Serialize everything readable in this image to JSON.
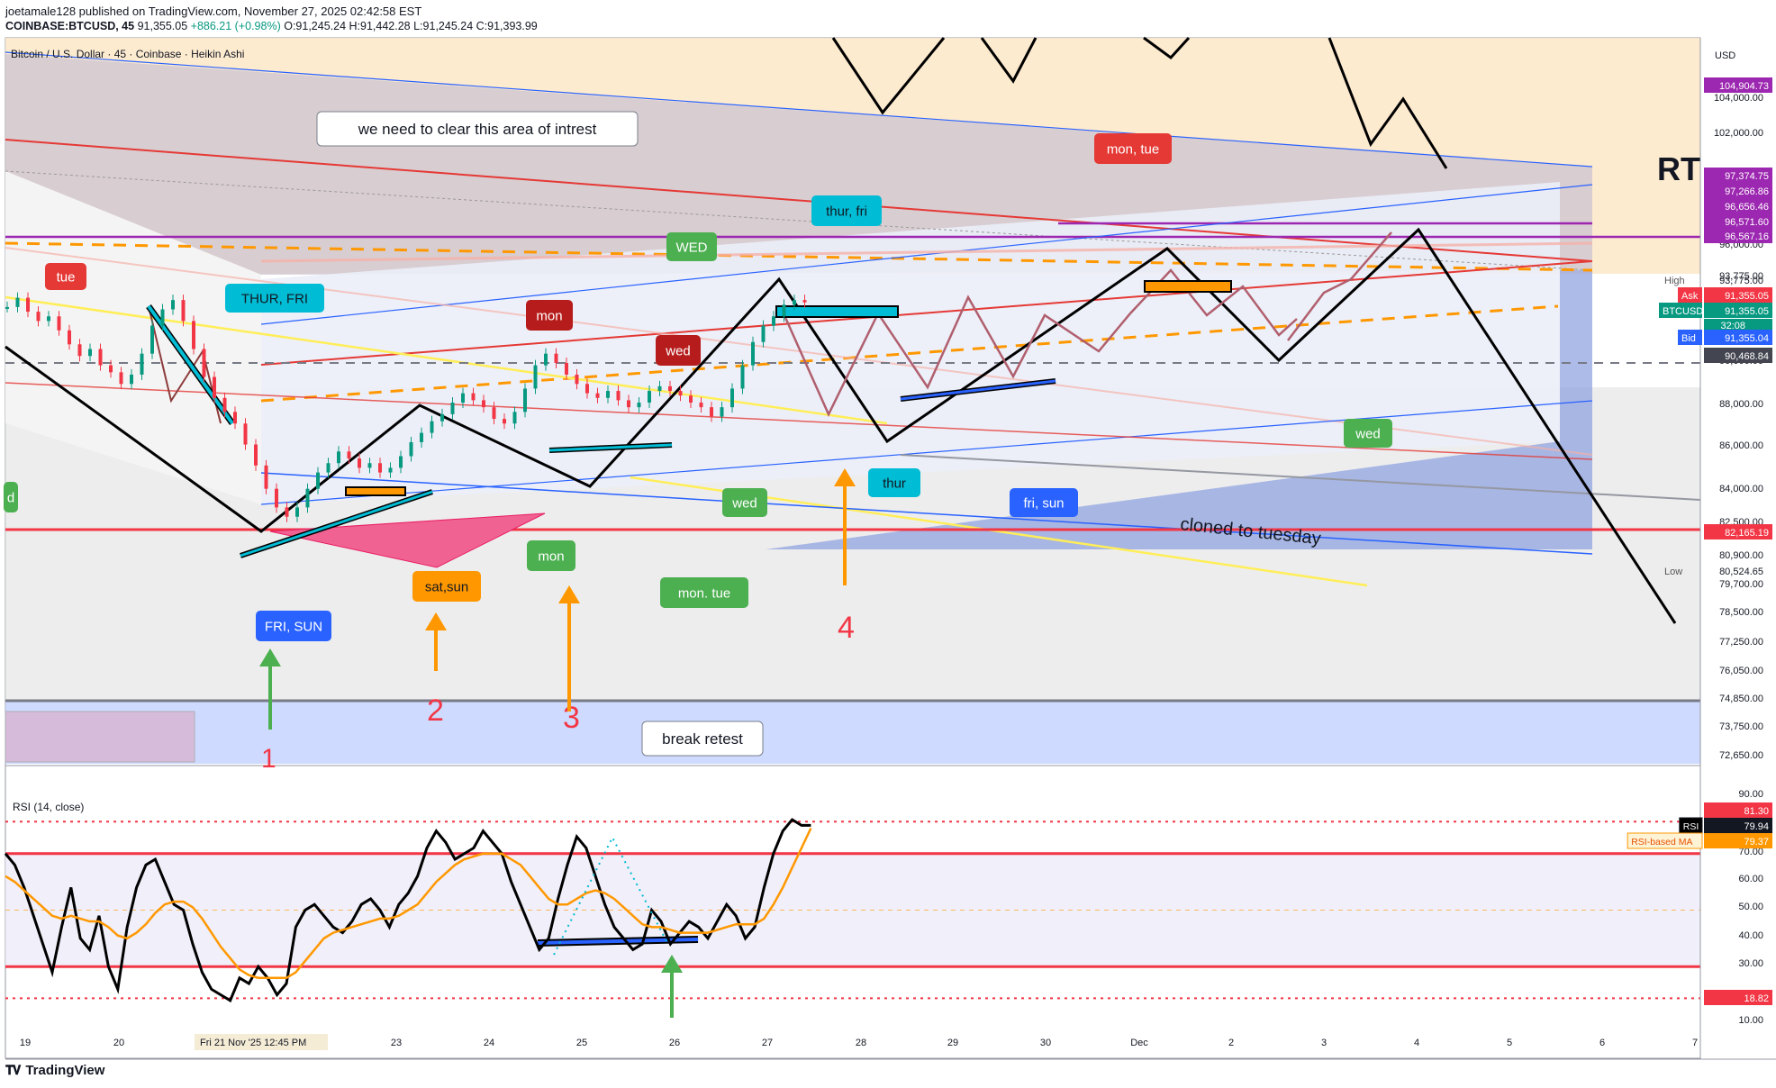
{
  "header": {
    "publisher_line": "joetamale128 published on TradingView.com, November 27, 2025 02:42:58 EST",
    "symbol": "COINBASE:BTCUSD, 45",
    "last": "91,355.05",
    "change": "+886.21 (+0.98%)",
    "o": "O:91,245.24",
    "h": "H:91,442.28",
    "l": "L:91,245.24",
    "c": "C:91,393.99"
  },
  "footer": {
    "brand": "TradingView",
    "logo": "tradingview-logo"
  },
  "colors": {
    "up": "#089981",
    "down": "#f23645",
    "orange": "#ff9800",
    "blue": "#2962ff",
    "cyan": "#00bcd4",
    "green": "#4caf50",
    "red_label": "#e53935",
    "maroon": "#b71c1c",
    "purple": "#9c27b0",
    "axis_text": "#131722"
  },
  "chart_data": [
    {
      "type": "candlestick",
      "title": "Bitcoin / U.S. Dollar · 45 · Coinbase · Heikin Ashi",
      "currency": "USD",
      "scale": "linear",
      "ylim": [
        72000,
        106000
      ],
      "x_ticks": [
        "19",
        "20",
        "21",
        "23",
        "24",
        "25",
        "26",
        "27",
        "28",
        "29",
        "30",
        "Dec",
        "2",
        "3",
        "4",
        "5",
        "6",
        "7"
      ],
      "y_ticks": [
        "104,000.00",
        "102,000.00",
        "96,000.00",
        "93,775.00",
        "90,000.00",
        "88,000.00",
        "86,000.00",
        "84,000.00",
        "82,500.00",
        "80,900.00",
        "79,700.00",
        "78,500.00",
        "77,250.00",
        "76,050.00",
        "74,850.00",
        "73,750.00",
        "72,650.00"
      ],
      "crosshair_x_label": "Fri 21 Nov '25   12:45 PM",
      "price_labels": [
        {
          "text": "104,904.73",
          "value": 104904.73,
          "color": "#9c27b0"
        },
        {
          "text": "97,374.75",
          "value": 97374.75,
          "color": "#9c27b0"
        },
        {
          "text": "97,266.86",
          "value": 97266.86,
          "color": "#9c27b0"
        },
        {
          "text": "96,656.46",
          "value": 96656.46,
          "color": "#9c27b0"
        },
        {
          "text": "96,571.60",
          "value": 96571.6,
          "color": "#9c27b0"
        },
        {
          "text": "96,567.16",
          "value": 96567.16,
          "color": "#9c27b0"
        },
        {
          "text": "91,355.05",
          "value": 91355.05,
          "color": "#f23645",
          "tag": "Ask"
        },
        {
          "text": "91,355.05",
          "value": 91355.05,
          "color": "#089981",
          "tag": "BTCUSD",
          "extra": "32:08"
        },
        {
          "text": "91,355.04",
          "value": 91355.04,
          "color": "#2962ff",
          "tag": "Bid"
        },
        {
          "text": "90,468.84",
          "value": 90468.84,
          "color": "#434651"
        },
        {
          "text": "82,165.19",
          "value": 82165.19,
          "color": "#f23645"
        }
      ],
      "plain_labels": [
        {
          "tag": "High",
          "text": "93,775.00",
          "value": 93775
        },
        {
          "tag": "Low",
          "text": "80,524.65",
          "value": 80524.65
        }
      ],
      "candles": [
        [
          0,
          91200
        ],
        [
          2,
          91600
        ],
        [
          4,
          91000
        ],
        [
          6,
          90600
        ],
        [
          8,
          90800
        ],
        [
          10,
          90200
        ],
        [
          12,
          89600
        ],
        [
          14,
          89100
        ],
        [
          16,
          89400
        ],
        [
          18,
          88700
        ],
        [
          20,
          88400
        ],
        [
          22,
          87900
        ],
        [
          24,
          88300
        ],
        [
          26,
          89200
        ],
        [
          28,
          90400
        ],
        [
          30,
          91100
        ],
        [
          32,
          91500
        ],
        [
          34,
          90600
        ],
        [
          36,
          89400
        ],
        [
          38,
          88200
        ],
        [
          40,
          87300
        ],
        [
          42,
          86700
        ],
        [
          44,
          86200
        ],
        [
          46,
          85300
        ],
        [
          48,
          84400
        ],
        [
          50,
          83400
        ],
        [
          52,
          82600
        ],
        [
          54,
          82200
        ],
        [
          56,
          82600
        ],
        [
          58,
          83400
        ],
        [
          60,
          84100
        ],
        [
          62,
          84500
        ],
        [
          64,
          85000
        ],
        [
          66,
          84700
        ],
        [
          68,
          84300
        ],
        [
          70,
          84500
        ],
        [
          72,
          84100
        ],
        [
          74,
          84300
        ],
        [
          76,
          84800
        ],
        [
          78,
          85400
        ],
        [
          80,
          85800
        ],
        [
          82,
          86300
        ],
        [
          84,
          86600
        ],
        [
          86,
          87100
        ],
        [
          88,
          87500
        ],
        [
          90,
          87200
        ],
        [
          92,
          86900
        ],
        [
          94,
          86400
        ],
        [
          96,
          86200
        ],
        [
          98,
          86700
        ],
        [
          100,
          87700
        ],
        [
          102,
          88700
        ],
        [
          104,
          89200
        ],
        [
          106,
          88800
        ],
        [
          108,
          88300
        ],
        [
          110,
          87900
        ],
        [
          112,
          87500
        ],
        [
          114,
          87300
        ],
        [
          116,
          87600
        ],
        [
          118,
          87200
        ],
        [
          120,
          86900
        ],
        [
          122,
          87100
        ],
        [
          124,
          87600
        ],
        [
          126,
          87800
        ],
        [
          128,
          87600
        ],
        [
          130,
          87400
        ],
        [
          132,
          87100
        ],
        [
          134,
          86900
        ],
        [
          136,
          86500
        ],
        [
          138,
          86900
        ],
        [
          140,
          87700
        ],
        [
          142,
          88700
        ],
        [
          144,
          89700
        ],
        [
          146,
          90400
        ],
        [
          148,
          90800
        ],
        [
          150,
          91300
        ],
        [
          152,
          91500
        ],
        [
          154,
          91400
        ]
      ],
      "annotations": [
        {
          "text": "we need to clear this area of intrest",
          "kind": "callout"
        },
        {
          "text": "tue",
          "color": "#e53935"
        },
        {
          "text": "THUR, FRI",
          "color": "#00bcd4"
        },
        {
          "text": "mon",
          "color": "#b71c1c"
        },
        {
          "text": "wed",
          "color": "#b71c1c"
        },
        {
          "text": "WED",
          "color": "#4caf50"
        },
        {
          "text": "thur, fri",
          "color": "#00bcd4"
        },
        {
          "text": "mon, tue",
          "color": "#e53935"
        },
        {
          "text": "wed",
          "color": "#4caf50"
        },
        {
          "text": "thur",
          "color": "#00bcd4"
        },
        {
          "text": "fri, sun",
          "color": "#2962ff"
        },
        {
          "text": "wed",
          "color": "#4caf50"
        },
        {
          "text": "mon",
          "color": "#4caf50"
        },
        {
          "text": "mon. tue",
          "color": "#4caf50"
        },
        {
          "text": "sat,sun",
          "color": "#ff9800"
        },
        {
          "text": "FRI, SUN",
          "color": "#2962ff"
        },
        {
          "text": "d",
          "color": "#4caf50"
        },
        {
          "text": "cloned to tuesday",
          "kind": "plain"
        },
        {
          "text": "break retest",
          "kind": "callout"
        },
        {
          "text": "RT",
          "kind": "plain"
        },
        {
          "text": "1",
          "kind": "number"
        },
        {
          "text": "2",
          "kind": "number"
        },
        {
          "text": "3",
          "kind": "number"
        },
        {
          "text": "4",
          "kind": "number"
        }
      ]
    },
    {
      "type": "line",
      "title": "RSI (14, close)",
      "ylim": [
        0,
        90
      ],
      "y_ticks": [
        "90.00",
        "70.00",
        "60.00",
        "50.00",
        "40.00",
        "30.00",
        "10.00"
      ],
      "levels": {
        "upper": 70,
        "middle": 50,
        "lower": 30,
        "dotted_high": 81.3,
        "dotted_low": 18.82
      },
      "price_labels": [
        {
          "text": "81.30",
          "value": 81.3,
          "color": "#f23645"
        },
        {
          "tag": "RSI",
          "text": "79.94",
          "value": 79.94,
          "color": "#131722"
        },
        {
          "tag": "RSI-based MA",
          "text": "79.37",
          "value": 79.37,
          "color": "#ff9800"
        },
        {
          "text": "18.82",
          "value": 18.82,
          "color": "#f23645"
        }
      ],
      "series": [
        {
          "name": "RSI",
          "values": [
            70,
            66,
            58,
            48,
            38,
            28,
            44,
            58,
            40,
            36,
            48,
            30,
            22,
            44,
            58,
            66,
            68,
            60,
            52,
            50,
            38,
            28,
            22,
            20,
            18,
            26,
            24,
            30,
            26,
            20,
            24,
            44,
            50,
            52,
            48,
            44,
            42,
            46,
            52,
            54,
            50,
            44,
            52,
            56,
            62,
            72,
            78,
            74,
            68,
            70,
            72,
            78,
            74,
            70,
            60,
            52,
            44,
            36,
            40,
            54,
            66,
            76,
            72,
            62,
            52,
            44,
            40,
            36,
            38,
            50,
            46,
            38,
            42,
            46,
            44,
            40,
            46,
            52,
            48,
            40,
            44,
            58,
            70,
            78,
            82,
            80,
            80
          ]
        },
        {
          "name": "RSI-based MA",
          "values": [
            62,
            60,
            57,
            54,
            51,
            48,
            47,
            48,
            47,
            46,
            46,
            44,
            41,
            40,
            42,
            45,
            49,
            52,
            53,
            53,
            51,
            47,
            42,
            37,
            33,
            29,
            27,
            26,
            26,
            26,
            26,
            28,
            32,
            36,
            40,
            42,
            43,
            44,
            45,
            46,
            47,
            47,
            48,
            50,
            52,
            56,
            60,
            63,
            66,
            68,
            69,
            70,
            70,
            70,
            68,
            66,
            62,
            58,
            54,
            52,
            52,
            54,
            56,
            57,
            56,
            54,
            51,
            48,
            45,
            44,
            44,
            43,
            42,
            42,
            42,
            42,
            43,
            44,
            45,
            45,
            45,
            47,
            52,
            58,
            65,
            72,
            79
          ]
        }
      ]
    }
  ]
}
